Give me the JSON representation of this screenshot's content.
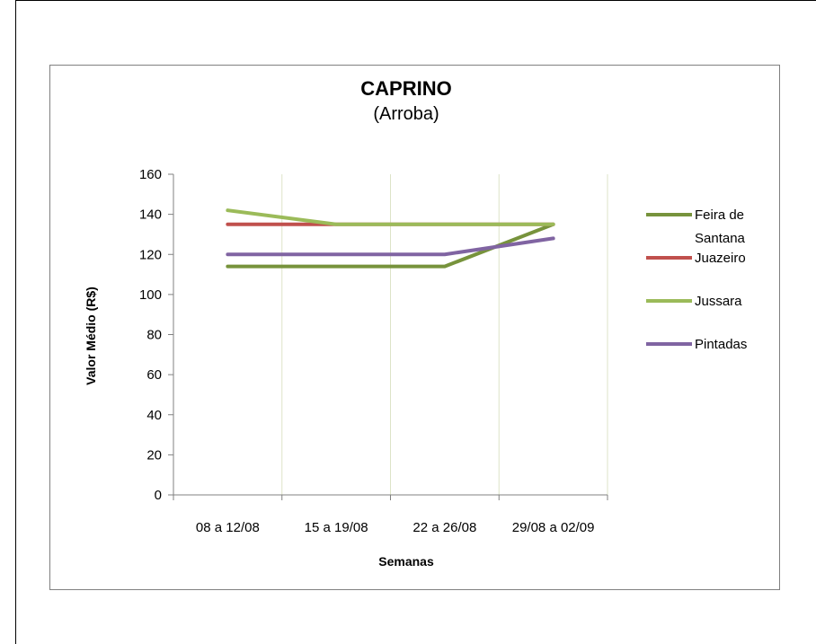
{
  "chart_data": {
    "type": "line",
    "title": "CAPRINO",
    "subtitle": "(Arroba)",
    "xlabel": "Semanas",
    "ylabel": "Valor Médio (R$)",
    "categories": [
      "08 a 12/08",
      "15 a 19/08",
      "22 a 26/08",
      "29/08 a 02/09"
    ],
    "ylim": [
      0,
      160
    ],
    "yticks": [
      "0",
      "20",
      "40",
      "60",
      "80",
      "100",
      "120",
      "140",
      "160"
    ],
    "grid": "vertical",
    "legend_position": "right",
    "series": [
      {
        "name": "Feira de Santana",
        "color": "#77933C",
        "values": [
          114,
          114,
          114,
          135
        ]
      },
      {
        "name": "Juazeiro",
        "color": "#C0504D",
        "values": [
          135,
          135,
          135,
          135
        ]
      },
      {
        "name": "Jussara",
        "color": "#9BBB59",
        "values": [
          142,
          135,
          135,
          135
        ]
      },
      {
        "name": "Pintadas",
        "color": "#8064A2",
        "values": [
          120,
          120,
          120,
          128
        ]
      }
    ]
  }
}
